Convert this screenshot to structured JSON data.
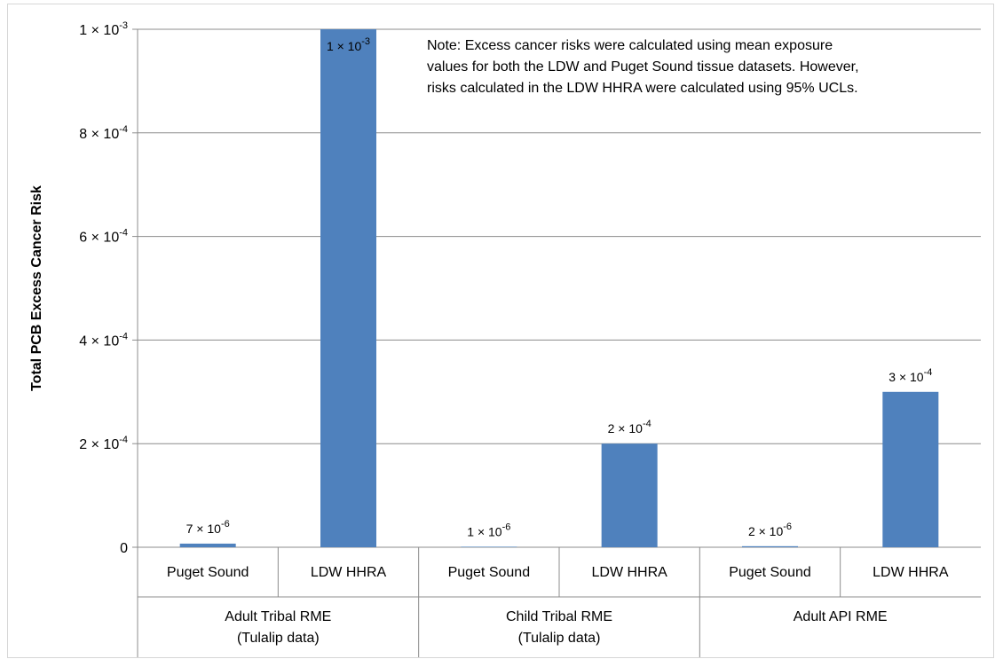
{
  "chart_data": {
    "type": "bar",
    "ylabel": "Total PCB Excess Cancer Risk",
    "xlabel": "",
    "ylim": [
      0,
      0.001
    ],
    "yticks": [
      {
        "value": 0,
        "label": "0"
      },
      {
        "value": 0.0002,
        "label": "2 × 10",
        "exp": "-4"
      },
      {
        "value": 0.0004,
        "label": "4 × 10",
        "exp": "-4"
      },
      {
        "value": 0.0006,
        "label": "6 × 10",
        "exp": "-4"
      },
      {
        "value": 0.0008,
        "label": "8 × 10",
        "exp": "-4"
      },
      {
        "value": 0.001,
        "label": "1 × 10",
        "exp": "-3"
      }
    ],
    "categories": [
      "Puget Sound",
      "LDW HHRA",
      "Puget Sound",
      "LDW HHRA",
      "Puget Sound",
      "LDW HHRA"
    ],
    "groups": [
      {
        "line1": "Adult Tribal RME",
        "line2": "(Tulalip data)"
      },
      {
        "line1": "Child Tribal RME",
        "line2": "(Tulalip data)"
      },
      {
        "line1": "Adult API RME",
        "line2": ""
      }
    ],
    "values": [
      7e-06,
      0.001,
      1e-06,
      0.0002,
      2e-06,
      0.0003
    ],
    "data_labels": [
      {
        "base": "7 × 10",
        "exp": "-6"
      },
      {
        "base": "1 × 10",
        "exp": "-3"
      },
      {
        "base": "1 × 10",
        "exp": "-6"
      },
      {
        "base": "2 × 10",
        "exp": "-4"
      },
      {
        "base": "2 × 10",
        "exp": "-6"
      },
      {
        "base": "3 × 10",
        "exp": "-4"
      }
    ],
    "grid": true,
    "bar_color": "#4f81bd",
    "note": "Note: Excess cancer risks were calculated using mean exposure\nvalues for both the LDW and Puget Sound tissue datasets. However,\nrisks calculated in the LDW HHRA were calculated using 95% UCLs."
  }
}
